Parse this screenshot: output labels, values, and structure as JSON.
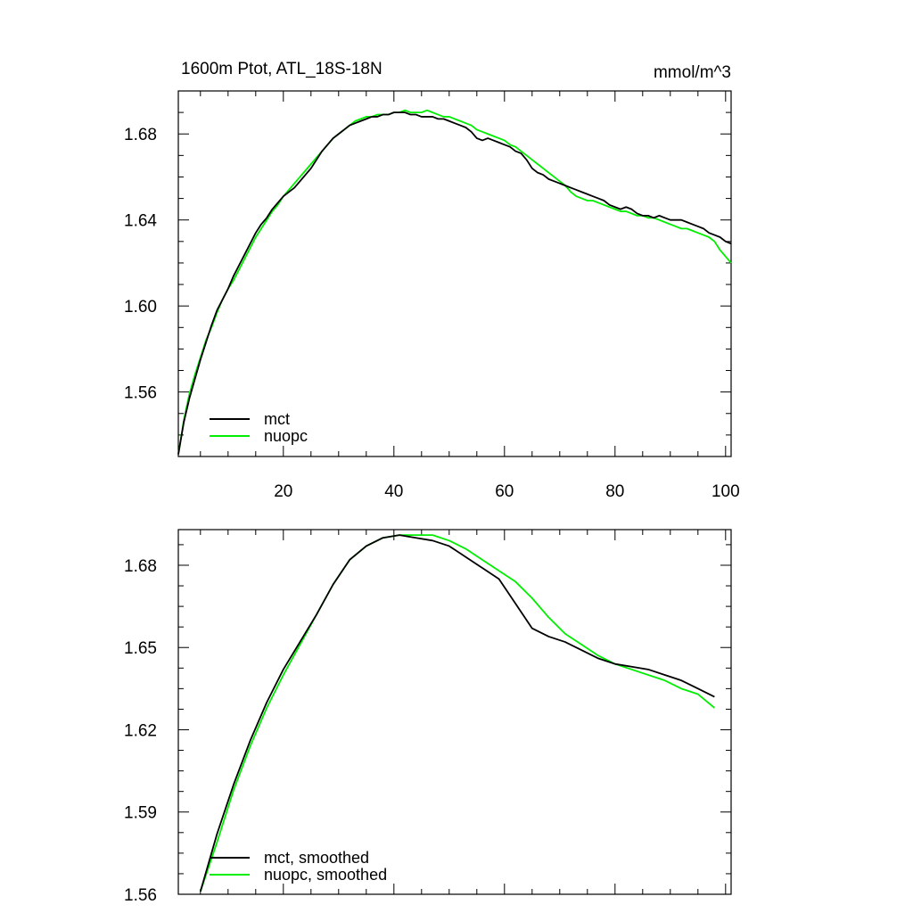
{
  "chart_data": [
    {
      "type": "line",
      "title": "1600m Ptot, ATL_18S-18N",
      "units": "mmol/m^3",
      "xlabel": "",
      "ylabel": "",
      "xlim": [
        1,
        101
      ],
      "ylim": [
        1.53,
        1.7
      ],
      "x_ticks": [
        20,
        40,
        60,
        80,
        100
      ],
      "x_tick_labels": [
        "20",
        "40",
        "60",
        "80",
        "100"
      ],
      "y_ticks": [
        1.56,
        1.6,
        1.64,
        1.68
      ],
      "y_tick_labels": [
        "1.56",
        "1.60",
        "1.64",
        "1.68"
      ],
      "legend_position": "bottom-left",
      "series": [
        {
          "name": "mct",
          "color": "#000000",
          "x": [
            1,
            2,
            3,
            4,
            5,
            6,
            7,
            8,
            9,
            10,
            11,
            12,
            13,
            14,
            15,
            16,
            17,
            18,
            19,
            20,
            21,
            22,
            23,
            24,
            25,
            26,
            27,
            28,
            29,
            30,
            31,
            32,
            33,
            34,
            35,
            36,
            37,
            38,
            39,
            40,
            41,
            42,
            43,
            44,
            45,
            46,
            47,
            48,
            49,
            50,
            51,
            52,
            53,
            54,
            55,
            56,
            57,
            58,
            59,
            60,
            61,
            62,
            63,
            64,
            65,
            66,
            67,
            68,
            69,
            70,
            71,
            72,
            73,
            74,
            75,
            76,
            77,
            78,
            79,
            80,
            81,
            82,
            83,
            84,
            85,
            86,
            87,
            88,
            89,
            90,
            91,
            92,
            93,
            94,
            95,
            96,
            97,
            98,
            99,
            100,
            101
          ],
          "values": [
            1.531,
            1.546,
            1.557,
            1.566,
            1.575,
            1.583,
            1.591,
            1.598,
            1.603,
            1.608,
            1.614,
            1.619,
            1.624,
            1.629,
            1.634,
            1.638,
            1.641,
            1.645,
            1.648,
            1.651,
            1.653,
            1.655,
            1.658,
            1.661,
            1.664,
            1.668,
            1.672,
            1.675,
            1.678,
            1.68,
            1.682,
            1.684,
            1.685,
            1.686,
            1.687,
            1.688,
            1.688,
            1.689,
            1.689,
            1.69,
            1.69,
            1.69,
            1.689,
            1.689,
            1.688,
            1.688,
            1.688,
            1.687,
            1.687,
            1.686,
            1.685,
            1.684,
            1.683,
            1.681,
            1.678,
            1.677,
            1.678,
            1.677,
            1.676,
            1.675,
            1.674,
            1.672,
            1.671,
            1.668,
            1.664,
            1.662,
            1.661,
            1.659,
            1.658,
            1.657,
            1.656,
            1.655,
            1.654,
            1.653,
            1.652,
            1.651,
            1.65,
            1.649,
            1.647,
            1.646,
            1.645,
            1.646,
            1.645,
            1.643,
            1.642,
            1.642,
            1.641,
            1.642,
            1.641,
            1.64,
            1.64,
            1.64,
            1.639,
            1.638,
            1.637,
            1.636,
            1.634,
            1.633,
            1.632,
            1.63,
            1.629
          ]
        },
        {
          "name": "nuopc",
          "color": "#00ee00",
          "x": [
            1,
            2,
            3,
            4,
            5,
            6,
            7,
            8,
            9,
            10,
            11,
            12,
            13,
            14,
            15,
            16,
            17,
            18,
            19,
            20,
            21,
            22,
            23,
            24,
            25,
            26,
            27,
            28,
            29,
            30,
            31,
            32,
            33,
            34,
            35,
            36,
            37,
            38,
            39,
            40,
            41,
            42,
            43,
            44,
            45,
            46,
            47,
            48,
            49,
            50,
            51,
            52,
            53,
            54,
            55,
            56,
            57,
            58,
            59,
            60,
            61,
            62,
            63,
            64,
            65,
            66,
            67,
            68,
            69,
            70,
            71,
            72,
            73,
            74,
            75,
            76,
            77,
            78,
            79,
            80,
            81,
            82,
            83,
            84,
            85,
            86,
            87,
            88,
            89,
            90,
            91,
            92,
            93,
            94,
            95,
            96,
            97,
            98,
            99,
            100,
            101
          ],
          "values": [
            1.531,
            1.547,
            1.559,
            1.568,
            1.576,
            1.584,
            1.59,
            1.597,
            1.603,
            1.608,
            1.612,
            1.617,
            1.622,
            1.627,
            1.632,
            1.636,
            1.64,
            1.644,
            1.647,
            1.651,
            1.654,
            1.657,
            1.66,
            1.663,
            1.666,
            1.669,
            1.672,
            1.675,
            1.678,
            1.68,
            1.682,
            1.684,
            1.686,
            1.687,
            1.688,
            1.688,
            1.689,
            1.689,
            1.689,
            1.69,
            1.69,
            1.691,
            1.69,
            1.69,
            1.69,
            1.691,
            1.69,
            1.689,
            1.688,
            1.688,
            1.687,
            1.686,
            1.685,
            1.684,
            1.682,
            1.681,
            1.68,
            1.679,
            1.678,
            1.677,
            1.675,
            1.674,
            1.672,
            1.67,
            1.668,
            1.666,
            1.664,
            1.662,
            1.66,
            1.658,
            1.656,
            1.653,
            1.651,
            1.65,
            1.649,
            1.649,
            1.648,
            1.647,
            1.646,
            1.645,
            1.644,
            1.644,
            1.643,
            1.642,
            1.642,
            1.641,
            1.641,
            1.64,
            1.639,
            1.638,
            1.637,
            1.636,
            1.636,
            1.635,
            1.634,
            1.633,
            1.632,
            1.63,
            1.626,
            1.623,
            1.62
          ]
        }
      ]
    },
    {
      "type": "line",
      "title": "",
      "xlabel": "",
      "ylabel": "",
      "xlim": [
        1,
        101
      ],
      "ylim": [
        1.56,
        1.693
      ],
      "x_ticks": [
        20,
        40,
        60,
        80,
        100
      ],
      "x_tick_labels": [],
      "y_ticks": [
        1.56,
        1.59,
        1.62,
        1.65,
        1.68
      ],
      "y_tick_labels": [
        "1.56",
        "1.59",
        "1.62",
        "1.65",
        "1.68"
      ],
      "legend_position": "bottom-left",
      "series": [
        {
          "name": "mct, smoothed",
          "color": "#000000",
          "x": [
            5,
            8,
            11,
            14,
            17,
            20,
            23,
            26,
            29,
            32,
            35,
            38,
            41,
            44,
            47,
            50,
            53,
            56,
            59,
            62,
            65,
            68,
            71,
            74,
            77,
            80,
            83,
            86,
            89,
            92,
            95,
            98
          ],
          "values": [
            1.561,
            1.582,
            1.6,
            1.616,
            1.63,
            1.642,
            1.652,
            1.662,
            1.673,
            1.682,
            1.687,
            1.69,
            1.691,
            1.69,
            1.689,
            1.687,
            1.683,
            1.679,
            1.675,
            1.666,
            1.657,
            1.654,
            1.652,
            1.649,
            1.646,
            1.644,
            1.643,
            1.642,
            1.64,
            1.638,
            1.635,
            1.632
          ]
        },
        {
          "name": "nuopc, smoothed",
          "color": "#00ee00",
          "x": [
            5,
            8,
            11,
            14,
            17,
            20,
            23,
            26,
            29,
            32,
            35,
            38,
            41,
            44,
            47,
            50,
            53,
            56,
            59,
            62,
            65,
            68,
            71,
            74,
            77,
            80,
            83,
            86,
            89,
            92,
            95,
            98
          ],
          "values": [
            1.561,
            1.579,
            1.598,
            1.614,
            1.628,
            1.64,
            1.651,
            1.662,
            1.673,
            1.682,
            1.687,
            1.69,
            1.691,
            1.691,
            1.691,
            1.689,
            1.686,
            1.682,
            1.678,
            1.674,
            1.668,
            1.661,
            1.655,
            1.651,
            1.647,
            1.644,
            1.642,
            1.64,
            1.638,
            1.635,
            1.633,
            1.628
          ]
        }
      ]
    }
  ]
}
